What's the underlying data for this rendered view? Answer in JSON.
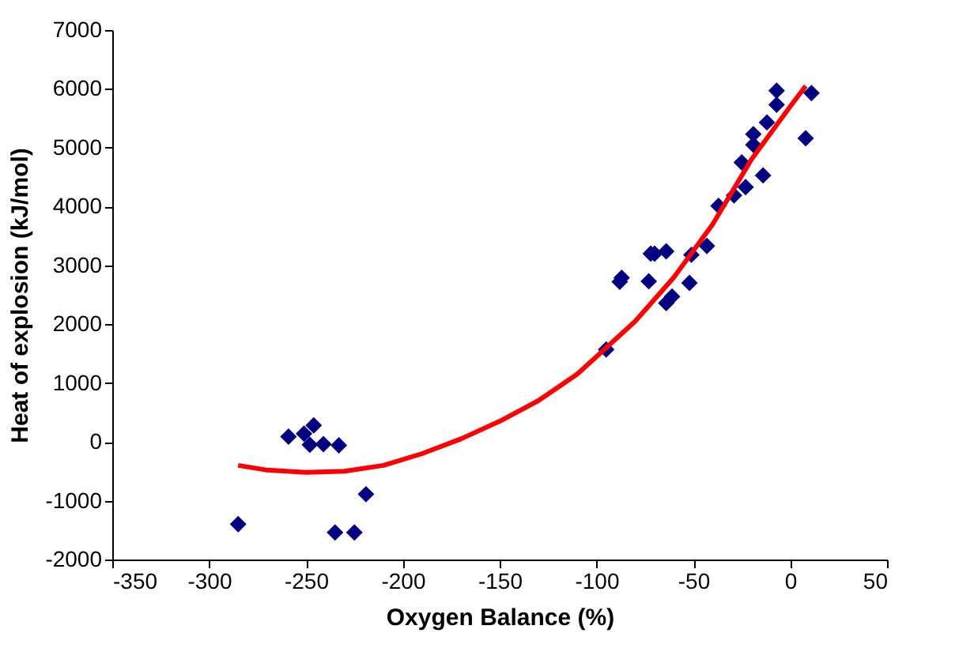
{
  "chart_data": {
    "type": "scatter",
    "xlabel": "Oxygen Balance (%)",
    "ylabel": "Heat of explosion (kJ/mol)",
    "xlim": [
      -350,
      50
    ],
    "xticks": [
      -350,
      -300,
      -250,
      -200,
      -150,
      -100,
      -50,
      0,
      50
    ],
    "ylim": [
      -2000,
      7000
    ],
    "yticks": [
      -2000,
      -1000,
      0,
      1000,
      2000,
      3000,
      4000,
      5000,
      6000,
      7000
    ],
    "grid": false,
    "marker": "diamond",
    "series": [
      {
        "color": "#000080",
        "x": [
          -285,
          -259,
          -251,
          -246,
          -248,
          -241,
          -233,
          -219,
          -235,
          -225,
          -7,
          -7,
          11,
          8,
          -12,
          -19,
          -19,
          -25,
          -14,
          -23,
          -29,
          -37,
          -43,
          -51,
          -64,
          -70,
          -72,
          -87,
          -88,
          -61,
          -52,
          -73,
          -64,
          -95
        ],
        "values": [
          -1400,
          90,
          140,
          280,
          -50,
          -40,
          -60,
          -890,
          -1540,
          -1540,
          5970,
          5730,
          5930,
          5160,
          5430,
          5230,
          5050,
          4750,
          4530,
          4330,
          4190,
          4010,
          3330,
          3180,
          3240,
          3200,
          3200,
          2790,
          2720,
          2470,
          2700,
          2730,
          2360,
          1570
        ]
      },
      {
        "type": "line",
        "color": "#ff0000",
        "marker": "none",
        "x": [
          -285,
          -270,
          -250,
          -230,
          -210,
          -190,
          -170,
          -150,
          -130,
          -110,
          -100,
          -80,
          -60,
          -40,
          -20,
          0,
          8
        ],
        "values": [
          -400,
          -480,
          -520,
          -500,
          -400,
          -200,
          50,
          350,
          700,
          1150,
          1450,
          2050,
          2800,
          3700,
          4800,
          5700,
          6050
        ]
      }
    ]
  }
}
